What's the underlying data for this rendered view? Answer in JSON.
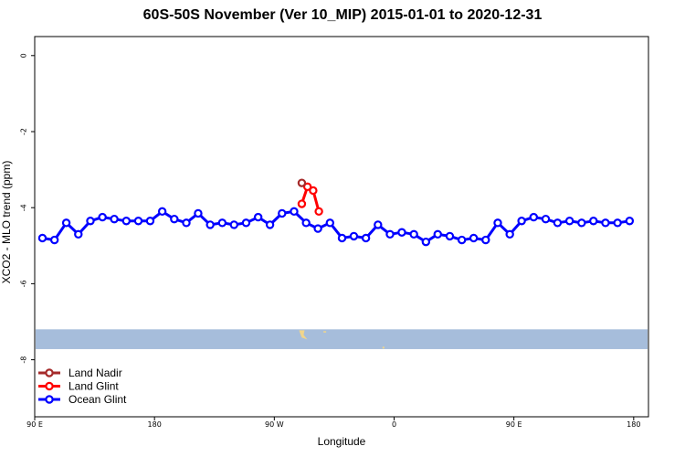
{
  "chart_data": {
    "type": "line",
    "title": "60S-50S November (Ver 10_MIP)   2015-01-01 to 2020-12-31",
    "xlabel": "Longitude",
    "ylabel": "XCO2 - MLO trend (ppm)",
    "xlim": [
      -90,
      180
    ],
    "ylim": [
      -9.5,
      0.5
    ],
    "x_ticks": [
      {
        "value": -90,
        "label": "90 E"
      },
      {
        "value": -37.3,
        "label": "180"
      },
      {
        "value": 15.4,
        "label": "90 W"
      },
      {
        "value": 68.1,
        "label": "0"
      },
      {
        "value": 120.8,
        "label": "90 E"
      },
      {
        "value": 173.5,
        "label": "180"
      }
    ],
    "y_ticks": [
      0,
      -2,
      -4,
      -6,
      -8
    ],
    "map_strip": {
      "y_top": -7.2,
      "y_bottom": -7.72,
      "ocean_color": "#a6bddb",
      "land_color": "#f0d58c"
    },
    "legend_position": "bottom-left",
    "series": [
      {
        "name": "Land Nadir",
        "color": "#a52a2a",
        "x": [
          27.5
        ],
        "y": [
          -3.35
        ]
      },
      {
        "name": "Land Glint",
        "color": "#ff0000",
        "x": [
          27.5,
          30.0,
          32.5,
          35.0
        ],
        "y": [
          -3.9,
          -3.45,
          -3.55,
          -4.1
        ]
      },
      {
        "name": "Ocean Glint",
        "color": "#0000ff",
        "x": [
          -86.6,
          -81.3,
          -76.1,
          -70.8,
          -65.5,
          -60.2,
          -55.0,
          -49.7,
          -44.4,
          -39.2,
          -33.9,
          -28.6,
          -23.3,
          -18.1,
          -12.8,
          -7.5,
          -2.3,
          3.0,
          8.3,
          13.5,
          18.8,
          24.1,
          29.4,
          34.6,
          39.9,
          45.2,
          50.4,
          55.7,
          61.0,
          66.3,
          71.5,
          76.8,
          82.1,
          87.3,
          92.6,
          97.9,
          103.1,
          108.4,
          113.7,
          119.0,
          124.2,
          129.5,
          134.8,
          140.0,
          145.3,
          150.6,
          155.8,
          161.1,
          166.4,
          171.7
        ],
        "y": [
          -4.8,
          -4.85,
          -4.4,
          -4.7,
          -4.35,
          -4.25,
          -4.3,
          -4.35,
          -4.35,
          -4.35,
          -4.1,
          -4.3,
          -4.4,
          -4.15,
          -4.45,
          -4.4,
          -4.45,
          -4.4,
          -4.25,
          -4.45,
          -4.15,
          -4.1,
          -4.4,
          -4.55,
          -4.4,
          -4.8,
          -4.75,
          -4.8,
          -4.45,
          -4.7,
          -4.65,
          -4.7,
          -4.9,
          -4.7,
          -4.75,
          -4.85,
          -4.8,
          -4.85,
          -4.4,
          -4.7,
          -4.35,
          -4.25,
          -4.3,
          -4.4,
          -4.35,
          -4.4,
          -4.35,
          -4.4,
          -4.4,
          -4.35
        ]
      }
    ]
  }
}
